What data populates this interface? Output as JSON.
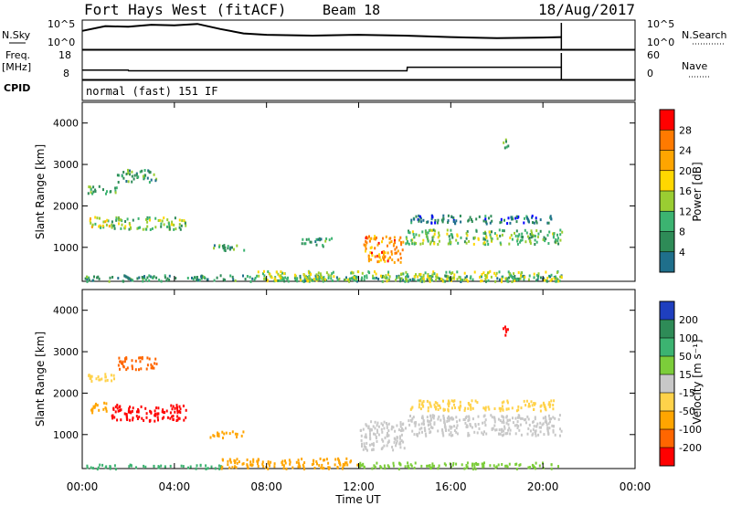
{
  "header": {
    "station": "Fort Hays West (fitACF)",
    "beam": "Beam 18",
    "date": "18/Aug/2017"
  },
  "top_panels": {
    "nsky_label": "N.Sky",
    "nsky_ticks": [
      "10^5",
      "10^0"
    ],
    "nsearch_label": "N.Search",
    "freq_label_line1": "Freq.",
    "freq_label_line2": "[MHz]",
    "freq_ticks": [
      "18",
      "8"
    ],
    "nave_label": "Nave",
    "nave_ticks": [
      "60",
      "0"
    ],
    "cpid_label": "CPID",
    "cpid_value": "normal (fast) 151 IF"
  },
  "power_colorbar": {
    "title": "Power [dB]",
    "ticks": [
      "28",
      "24",
      "20",
      "16",
      "12",
      "8",
      "4"
    ],
    "colors": [
      "#ff0000",
      "#ff7a00",
      "#ffa500",
      "#ffd700",
      "#9acd32",
      "#3cb371",
      "#2e8b57",
      "#1f6f8b",
      "#0000ff"
    ]
  },
  "velocity_colorbar": {
    "title": "Velocity [m s⁻¹]",
    "ticks": [
      "200",
      "100",
      "50",
      "15",
      "-15",
      "-50",
      "-100",
      "-200"
    ],
    "colors": [
      "#1f3fbf",
      "#2e8b57",
      "#3cb371",
      "#7ccd3a",
      "#c8c8c8",
      "#ffd24a",
      "#ffa500",
      "#ff6600",
      "#ff0000"
    ]
  },
  "x_axis": {
    "label": "Time UT",
    "ticks": [
      "00:00",
      "04:00",
      "08:00",
      "12:00",
      "16:00",
      "20:00",
      "00:00"
    ]
  },
  "chart_data": [
    {
      "type": "line",
      "title": "N.Sky",
      "x_unit": "hours UT",
      "xlim": [
        0,
        24
      ],
      "y_scale": "log",
      "ylim": [
        1,
        100000
      ],
      "series": [
        {
          "name": "N.Sky",
          "x": [
            0,
            1,
            2,
            3,
            4,
            5,
            6,
            7,
            8,
            10,
            12,
            14,
            16,
            18,
            20,
            20.8
          ],
          "y": [
            2000,
            20000,
            15000,
            40000,
            30000,
            60000,
            5000,
            600,
            300,
            200,
            300,
            200,
            100,
            60,
            80,
            100
          ]
        }
      ]
    },
    {
      "type": "line",
      "title": "Freq.",
      "x_unit": "hours UT",
      "xlim": [
        0,
        24
      ],
      "ylim": [
        8,
        18
      ],
      "series": [
        {
          "name": "Freq.",
          "x": [
            0,
            2,
            2.01,
            14.1,
            14.11,
            20.8
          ],
          "y": [
            10.8,
            10.8,
            10.5,
            10.5,
            12.0,
            12.0
          ]
        }
      ]
    },
    {
      "type": "heatmap",
      "title": "Power [dB]",
      "ylabel": "Slant Range [km]",
      "xlabel": "Time UT",
      "xlim": [
        0,
        24
      ],
      "ylim": [
        180,
        4500
      ],
      "y_ticks": [
        1000,
        2000,
        3000,
        4000
      ],
      "regions": [
        {
          "t0": 0.1,
          "t1": 20.8,
          "r0": 200,
          "r1": 350,
          "value": 8
        },
        {
          "t0": 0.3,
          "t1": 1.2,
          "r0": 1500,
          "r1": 1800,
          "value": 16
        },
        {
          "t0": 1.2,
          "t1": 4.5,
          "r0": 1450,
          "r1": 1750,
          "value": 12
        },
        {
          "t0": 0.2,
          "t1": 1.5,
          "r0": 2300,
          "r1": 2500,
          "value": 10
        },
        {
          "t0": 1.5,
          "t1": 3.2,
          "r0": 2600,
          "r1": 2900,
          "value": 9
        },
        {
          "t0": 5.5,
          "t1": 7.0,
          "r0": 950,
          "r1": 1100,
          "value": 9
        },
        {
          "t0": 9.5,
          "t1": 10.8,
          "r0": 1050,
          "r1": 1250,
          "value": 8
        },
        {
          "t0": 12.2,
          "t1": 13.9,
          "r0": 650,
          "r1": 1300,
          "value": 22
        },
        {
          "t0": 14.0,
          "t1": 20.8,
          "r0": 1100,
          "r1": 1450,
          "value": 12
        },
        {
          "t0": 14.2,
          "t1": 20.5,
          "r0": 1600,
          "r1": 1800,
          "value": 5
        },
        {
          "t0": 18.2,
          "t1": 18.5,
          "r0": 3400,
          "r1": 3650,
          "value": 10
        },
        {
          "t0": 7.5,
          "t1": 20.8,
          "r0": 200,
          "r1": 450,
          "value": 14
        }
      ]
    },
    {
      "type": "heatmap",
      "title": "Velocity [m s⁻¹]",
      "ylabel": "Slant Range [km]",
      "xlabel": "Time UT",
      "xlim": [
        0,
        24
      ],
      "ylim": [
        180,
        4500
      ],
      "y_ticks": [
        1000,
        2000,
        3000,
        4000
      ],
      "regions": [
        {
          "t0": 0.1,
          "t1": 6.0,
          "r0": 200,
          "r1": 300,
          "value": 70
        },
        {
          "t0": 6.0,
          "t1": 12.0,
          "r0": 200,
          "r1": 450,
          "value": -70
        },
        {
          "t0": 12.0,
          "t1": 20.8,
          "r0": 200,
          "r1": 350,
          "value": 30
        },
        {
          "t0": 0.3,
          "t1": 1.2,
          "r0": 1550,
          "r1": 1800,
          "value": -60
        },
        {
          "t0": 1.2,
          "t1": 4.5,
          "r0": 1350,
          "r1": 1750,
          "value": -220
        },
        {
          "t0": 0.2,
          "t1": 1.5,
          "r0": 2300,
          "r1": 2500,
          "value": -20
        },
        {
          "t0": 1.5,
          "t1": 3.2,
          "r0": 2600,
          "r1": 2900,
          "value": -120
        },
        {
          "t0": 5.5,
          "t1": 7.0,
          "r0": 950,
          "r1": 1100,
          "value": -60
        },
        {
          "t0": 12.0,
          "t1": 14.0,
          "r0": 650,
          "r1": 1350,
          "value": 0
        },
        {
          "t0": 14.0,
          "t1": 20.8,
          "r0": 1000,
          "r1": 1500,
          "value": 0
        },
        {
          "t0": 14.2,
          "t1": 20.5,
          "r0": 1600,
          "r1": 1850,
          "value": -30
        },
        {
          "t0": 18.2,
          "t1": 18.5,
          "r0": 3400,
          "r1": 3650,
          "value": -220
        }
      ]
    }
  ]
}
